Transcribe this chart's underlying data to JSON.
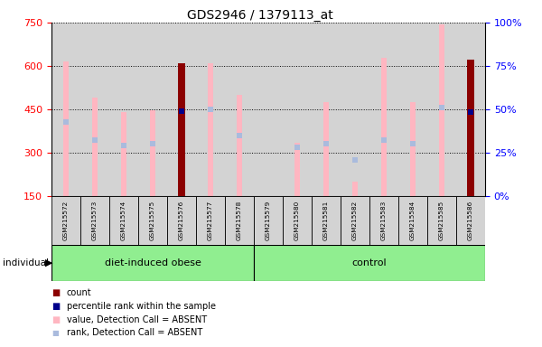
{
  "title": "GDS2946 / 1379113_at",
  "samples": [
    "GSM215572",
    "GSM215573",
    "GSM215574",
    "GSM215575",
    "GSM215576",
    "GSM215577",
    "GSM215578",
    "GSM215579",
    "GSM215580",
    "GSM215581",
    "GSM215582",
    "GSM215583",
    "GSM215584",
    "GSM215585",
    "GSM215586"
  ],
  "group_obese_count": 7,
  "value_absent": [
    615,
    490,
    440,
    447,
    null,
    610,
    500,
    null,
    335,
    475,
    200,
    628,
    475,
    745,
    null
  ],
  "rank_absent": [
    405,
    345,
    325,
    330,
    null,
    450,
    358,
    null,
    320,
    330,
    275,
    345,
    330,
    455,
    null
  ],
  "count_bars": [
    null,
    null,
    null,
    null,
    608,
    null,
    null,
    null,
    null,
    null,
    null,
    null,
    null,
    null,
    622
  ],
  "percentile_rank": [
    null,
    null,
    null,
    null,
    445,
    null,
    null,
    null,
    null,
    null,
    null,
    null,
    null,
    null,
    440
  ],
  "count_bar_color": "#8B0000",
  "percentile_bar_color": "#00008B",
  "value_absent_color": "#FFB6C1",
  "rank_absent_color": "#AABBDD",
  "bg_color": "#D3D3D3",
  "group_green": "#90EE90",
  "ylim_left": [
    150,
    750
  ],
  "ylim_right": [
    0,
    100
  ],
  "yticks_left": [
    150,
    300,
    450,
    600,
    750
  ],
  "yticks_right": [
    0,
    25,
    50,
    75,
    100
  ],
  "legend_labels": [
    "count",
    "percentile rank within the sample",
    "value, Detection Call = ABSENT",
    "rank, Detection Call = ABSENT"
  ],
  "legend_colors": [
    "#8B0000",
    "#00008B",
    "#FFB6C1",
    "#AABBDD"
  ],
  "group_labels": [
    "diet-induced obese",
    "control"
  ]
}
